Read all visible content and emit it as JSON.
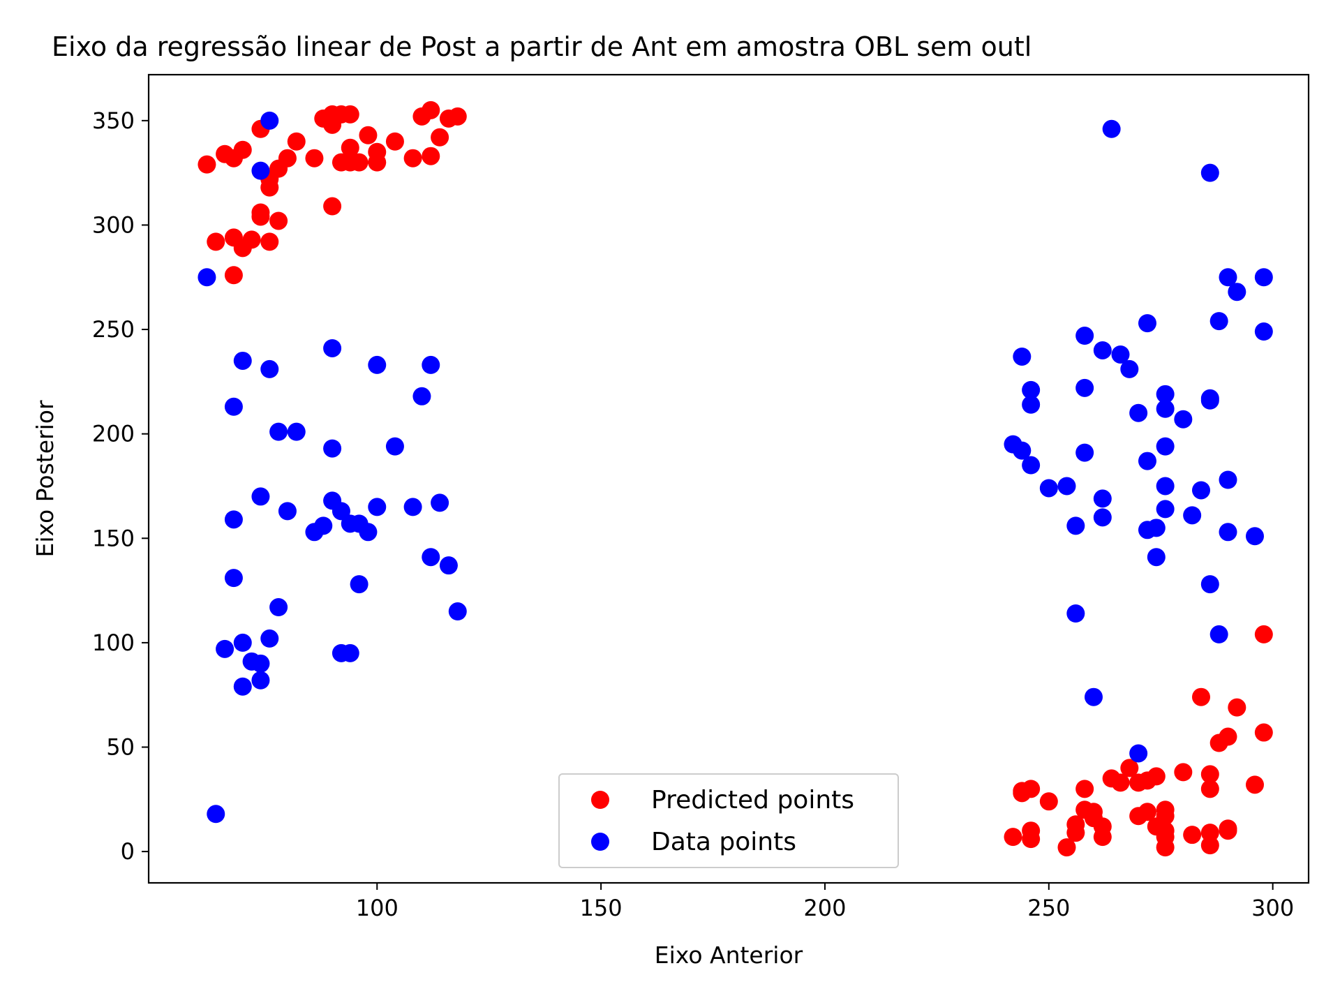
{
  "chart_data": {
    "type": "scatter",
    "title": "Eixo da regressão linear de Post a partir de Ant em amostra OBL sem outl",
    "xlabel": "Eixo Anterior",
    "ylabel": "Eixo Posterior",
    "xlim": [
      49,
      308
    ],
    "ylim": [
      -15,
      372
    ],
    "xticks": [
      100,
      150,
      200,
      250,
      300
    ],
    "yticks": [
      0,
      50,
      100,
      150,
      200,
      250,
      300,
      350
    ],
    "grid": false,
    "legend_position": "lower-center",
    "series": [
      {
        "name": "Predicted points",
        "color": "#ff0000",
        "points": [
          [
            62,
            329
          ],
          [
            64,
            292
          ],
          [
            66,
            334
          ],
          [
            68,
            276
          ],
          [
            68,
            294
          ],
          [
            68,
            332
          ],
          [
            70,
            289
          ],
          [
            70,
            336
          ],
          [
            72,
            293
          ],
          [
            74,
            304
          ],
          [
            74,
            306
          ],
          [
            74,
            346
          ],
          [
            76,
            318
          ],
          [
            76,
            322
          ],
          [
            76,
            292
          ],
          [
            78,
            302
          ],
          [
            78,
            327
          ],
          [
            80,
            332
          ],
          [
            82,
            340
          ],
          [
            86,
            332
          ],
          [
            88,
            351
          ],
          [
            90,
            309
          ],
          [
            90,
            348
          ],
          [
            90,
            353
          ],
          [
            92,
            330
          ],
          [
            92,
            353
          ],
          [
            94,
            337
          ],
          [
            94,
            330
          ],
          [
            94,
            353
          ],
          [
            96,
            330
          ],
          [
            98,
            343
          ],
          [
            100,
            330
          ],
          [
            100,
            335
          ],
          [
            104,
            340
          ],
          [
            108,
            332
          ],
          [
            110,
            352
          ],
          [
            112,
            333
          ],
          [
            112,
            355
          ],
          [
            114,
            342
          ],
          [
            116,
            351
          ],
          [
            118,
            352
          ],
          [
            242,
            7
          ],
          [
            244,
            28
          ],
          [
            244,
            29
          ],
          [
            246,
            30
          ],
          [
            246,
            10
          ],
          [
            246,
            6
          ],
          [
            250,
            24
          ],
          [
            254,
            2
          ],
          [
            256,
            9
          ],
          [
            256,
            13
          ],
          [
            258,
            30
          ],
          [
            258,
            20
          ],
          [
            260,
            19
          ],
          [
            260,
            16
          ],
          [
            262,
            12
          ],
          [
            262,
            7
          ],
          [
            264,
            35
          ],
          [
            266,
            33
          ],
          [
            268,
            40
          ],
          [
            270,
            17
          ],
          [
            270,
            33
          ],
          [
            272,
            34
          ],
          [
            272,
            19
          ],
          [
            274,
            36
          ],
          [
            274,
            12
          ],
          [
            276,
            20
          ],
          [
            276,
            17
          ],
          [
            276,
            10
          ],
          [
            276,
            7
          ],
          [
            276,
            2
          ],
          [
            280,
            38
          ],
          [
            282,
            8
          ],
          [
            284,
            74
          ],
          [
            286,
            37
          ],
          [
            286,
            30
          ],
          [
            286,
            9
          ],
          [
            286,
            3
          ],
          [
            288,
            52
          ],
          [
            290,
            55
          ],
          [
            290,
            11
          ],
          [
            290,
            10
          ],
          [
            292,
            69
          ],
          [
            296,
            32
          ],
          [
            298,
            57
          ],
          [
            298,
            104
          ]
        ]
      },
      {
        "name": "Data points",
        "color": "#0000ff",
        "points": [
          [
            62,
            275
          ],
          [
            64,
            18
          ],
          [
            66,
            97
          ],
          [
            68,
            213
          ],
          [
            68,
            159
          ],
          [
            68,
            131
          ],
          [
            70,
            235
          ],
          [
            70,
            100
          ],
          [
            70,
            79
          ],
          [
            72,
            91
          ],
          [
            74,
            326
          ],
          [
            74,
            170
          ],
          [
            74,
            90
          ],
          [
            74,
            82
          ],
          [
            76,
            350
          ],
          [
            76,
            231
          ],
          [
            76,
            102
          ],
          [
            78,
            201
          ],
          [
            78,
            117
          ],
          [
            80,
            163
          ],
          [
            82,
            201
          ],
          [
            86,
            153
          ],
          [
            88,
            156
          ],
          [
            90,
            241
          ],
          [
            90,
            193
          ],
          [
            90,
            168
          ],
          [
            92,
            163
          ],
          [
            92,
            95
          ],
          [
            94,
            157
          ],
          [
            94,
            95
          ],
          [
            96,
            157
          ],
          [
            96,
            128
          ],
          [
            98,
            153
          ],
          [
            100,
            233
          ],
          [
            100,
            165
          ],
          [
            104,
            194
          ],
          [
            108,
            165
          ],
          [
            110,
            218
          ],
          [
            112,
            233
          ],
          [
            112,
            141
          ],
          [
            114,
            167
          ],
          [
            116,
            137
          ],
          [
            118,
            115
          ],
          [
            242,
            195
          ],
          [
            244,
            237
          ],
          [
            244,
            192
          ],
          [
            246,
            221
          ],
          [
            246,
            214
          ],
          [
            246,
            185
          ],
          [
            250,
            174
          ],
          [
            254,
            175
          ],
          [
            256,
            156
          ],
          [
            256,
            114
          ],
          [
            258,
            247
          ],
          [
            258,
            222
          ],
          [
            258,
            191
          ],
          [
            260,
            74
          ],
          [
            262,
            240
          ],
          [
            262,
            169
          ],
          [
            262,
            160
          ],
          [
            264,
            346
          ],
          [
            266,
            238
          ],
          [
            268,
            231
          ],
          [
            270,
            210
          ],
          [
            270,
            47
          ],
          [
            272,
            253
          ],
          [
            272,
            187
          ],
          [
            272,
            154
          ],
          [
            274,
            155
          ],
          [
            274,
            141
          ],
          [
            276,
            219
          ],
          [
            276,
            212
          ],
          [
            276,
            194
          ],
          [
            276,
            175
          ],
          [
            276,
            164
          ],
          [
            280,
            207
          ],
          [
            282,
            161
          ],
          [
            284,
            173
          ],
          [
            286,
            325
          ],
          [
            286,
            217
          ],
          [
            286,
            216
          ],
          [
            286,
            128
          ],
          [
            288,
            254
          ],
          [
            288,
            104
          ],
          [
            290,
            275
          ],
          [
            290,
            178
          ],
          [
            290,
            153
          ],
          [
            292,
            268
          ],
          [
            296,
            151
          ],
          [
            298,
            275
          ],
          [
            298,
            249
          ]
        ]
      }
    ]
  }
}
